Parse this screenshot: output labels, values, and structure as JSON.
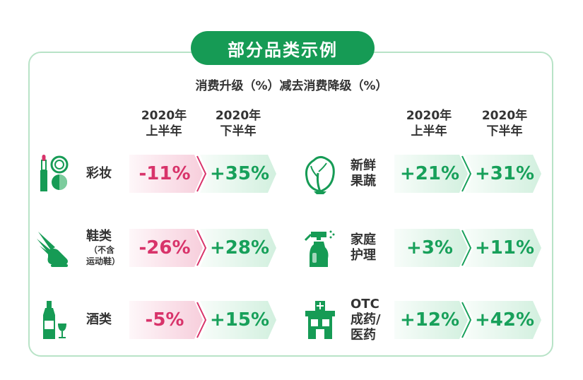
{
  "chart_data": {
    "type": "table",
    "title": "部分品类示例",
    "subtitle": "消费升级（%）减去消费降级（%）",
    "period_labels": [
      {
        "year": "2020年",
        "half": "上半年"
      },
      {
        "year": "2020年",
        "half": "下半年"
      }
    ],
    "units": "%",
    "rows": [
      {
        "icon": "cosmetics-icon",
        "label_lines": [
          "彩妆"
        ],
        "sub_lines": [],
        "h1": -11,
        "h2": 35,
        "h1_text": "-11%",
        "h2_text": "+35%"
      },
      {
        "icon": "shoe-icon",
        "label_lines": [
          "鞋类"
        ],
        "sub_lines": [
          "（不含",
          "运动鞋）"
        ],
        "h1": -26,
        "h2": 28,
        "h1_text": "-26%",
        "h2_text": "+28%"
      },
      {
        "icon": "wine-icon",
        "label_lines": [
          "酒类"
        ],
        "sub_lines": [],
        "h1": -5,
        "h2": 15,
        "h1_text": "-5%",
        "h2_text": "+15%"
      },
      {
        "icon": "vegetable-icon",
        "label_lines": [
          "新鲜",
          "果蔬"
        ],
        "sub_lines": [],
        "h1": 21,
        "h2": 31,
        "h1_text": "+21%",
        "h2_text": "+31%"
      },
      {
        "icon": "spray-bottle-icon",
        "label_lines": [
          "家庭",
          "护理"
        ],
        "sub_lines": [],
        "h1": 3,
        "h2": 11,
        "h1_text": "+3%",
        "h2_text": "+11%"
      },
      {
        "icon": "pharmacy-icon",
        "label_lines": [
          "OTC",
          "成药/",
          "医药"
        ],
        "sub_lines": [],
        "h1": 12,
        "h2": 42,
        "h1_text": "+12%",
        "h2_text": "+42%"
      }
    ]
  },
  "colors": {
    "brand_green": "#169b55",
    "up_green": "#17a05a",
    "down_red": "#d8336a",
    "down_fill": "#f6c9d8",
    "up_fill": "#cdeedb"
  }
}
